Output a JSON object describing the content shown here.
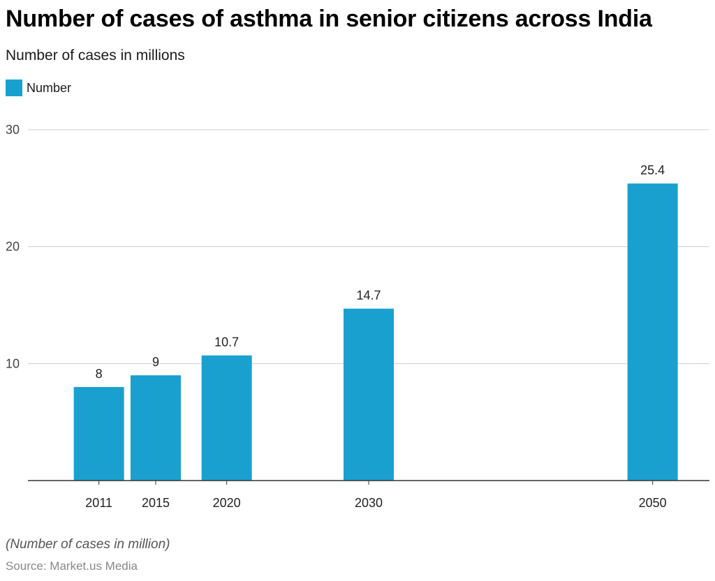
{
  "chart_data": {
    "type": "bar",
    "title": "Number of cases of asthma in senior citizens across India",
    "subtitle": "Number of cases in millions",
    "x": [
      2011,
      2015,
      2020,
      2030,
      2050
    ],
    "categories": [
      "2011",
      "2015",
      "2020",
      "2030",
      "2050"
    ],
    "series": [
      {
        "name": "Number",
        "values": [
          8,
          9,
          10.7,
          14.7,
          25.4
        ],
        "color": "#1aa0cf"
      }
    ],
    "data_labels": [
      "8",
      "9",
      "10.7",
      "14.7",
      "25.4"
    ],
    "ylim": [
      0,
      30
    ],
    "yticks": [
      10,
      20,
      30
    ],
    "ytick_labels": [
      "10",
      "20",
      "30"
    ],
    "xlim": [
      2006,
      2054
    ],
    "grid": true,
    "legend_position": "top-left",
    "xlabel": "",
    "ylabel": ""
  },
  "footer": {
    "note": "(Number of cases in million)",
    "source": "Source: Market.us Media"
  }
}
